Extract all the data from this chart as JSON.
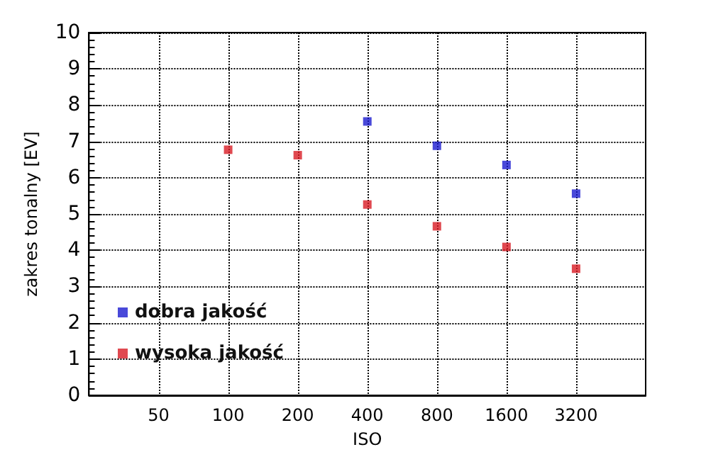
{
  "chart_data": {
    "type": "scatter",
    "xlabel": "ISO",
    "ylabel": "zakres tonalny [EV]",
    "log": "x",
    "xlim": [
      25,
      6400
    ],
    "xticks": [
      50,
      100,
      200,
      400,
      800,
      1600,
      3200
    ],
    "ylim": [
      0,
      10
    ],
    "yticks": [
      0,
      1,
      2,
      3,
      4,
      5,
      6,
      7,
      8,
      9,
      10
    ],
    "grid": true,
    "legend": "bottom left",
    "marker": "square",
    "series": [
      {
        "name": "dobra jakość",
        "color": "#1c1cd0",
        "x": [
          400,
          800,
          1600,
          3200
        ],
        "values": [
          7.55,
          6.88,
          6.35,
          5.56
        ]
      },
      {
        "name": "wysoka jakość",
        "color": "#d81c24",
        "x": [
          100,
          200,
          400,
          800,
          1600,
          3200
        ],
        "values": [
          6.77,
          6.62,
          5.26,
          4.66,
          4.09,
          3.49
        ]
      }
    ]
  }
}
